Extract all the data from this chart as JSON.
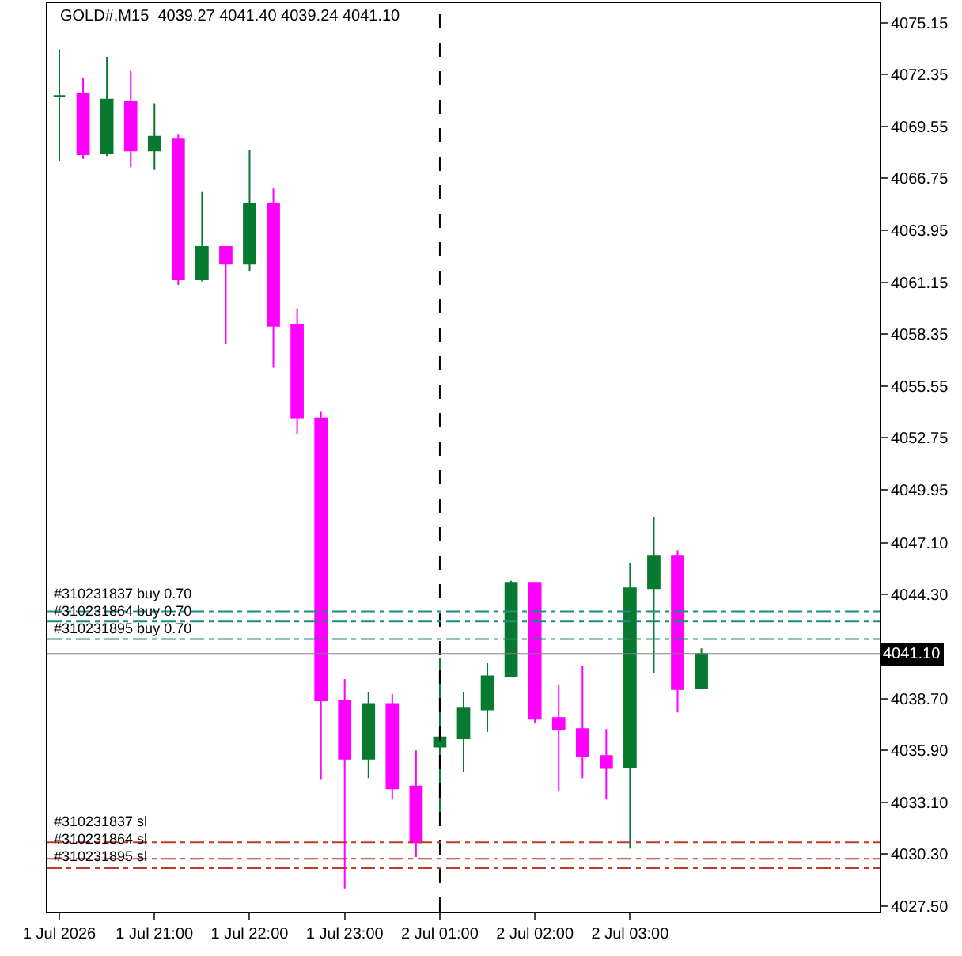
{
  "chart_data": {
    "type": "candlestick",
    "title": "GOLD#,M15  4039.27 4041.40 4039.24 4041.10",
    "categories": [
      "1 Jul 2026",
      null,
      null,
      null,
      "1 Jul 21:00",
      null,
      null,
      null,
      "1 Jul 22:00",
      null,
      null,
      null,
      "1 Jul 23:00",
      null,
      null,
      null,
      "2 Jul 01:00",
      null,
      null,
      null,
      "2 Jul 02:00",
      null,
      null,
      null,
      "2 Jul 03:00",
      null,
      null,
      null,
      null,
      null,
      null,
      null,
      null,
      null,
      null
    ],
    "ohlc": [
      [
        4071.2,
        4073.7,
        4067.7,
        4071.2
      ],
      [
        4071.3,
        4072.15,
        4067.8,
        4068.05
      ],
      [
        4068.1,
        4073.3,
        4067.95,
        4071.0
      ],
      [
        4070.9,
        4072.55,
        4067.35,
        4068.25
      ],
      [
        4068.25,
        4070.8,
        4067.2,
        4069.0
      ],
      [
        4068.85,
        4069.15,
        4061.0,
        4061.3
      ],
      [
        4061.3,
        4066.05,
        4061.2,
        4063.05
      ],
      [
        4063.05,
        4063.05,
        4057.8,
        4062.15
      ],
      [
        4062.15,
        4068.3,
        4061.75,
        4065.4
      ],
      [
        4065.4,
        4066.2,
        4056.55,
        4058.8
      ],
      [
        4058.85,
        4059.75,
        4052.95,
        4053.85
      ],
      [
        4053.8,
        4054.2,
        4034.35,
        4038.6
      ],
      [
        4038.6,
        4039.75,
        4028.45,
        4035.45
      ],
      [
        4035.45,
        4039.05,
        4034.4,
        4038.4
      ],
      [
        4038.4,
        4038.95,
        4033.25,
        4033.85
      ],
      [
        4033.95,
        4035.9,
        4030.15,
        4030.95
      ],
      [
        4036.1,
        4040.9,
        4032.45,
        4036.6
      ],
      [
        4036.55,
        4039.05,
        4034.75,
        4038.2
      ],
      [
        4038.1,
        4040.6,
        4036.9,
        4039.9
      ],
      [
        4039.9,
        4045.05,
        4039.9,
        4044.9
      ],
      [
        4044.9,
        4044.9,
        4037.4,
        4037.6
      ],
      [
        4037.65,
        4039.45,
        4033.7,
        4037.05
      ],
      [
        4037.05,
        4040.45,
        4034.4,
        4035.6
      ],
      [
        4035.6,
        4037.05,
        4033.25,
        4034.95
      ],
      [
        4035.0,
        4046.0,
        4030.6,
        4044.65
      ],
      [
        4044.65,
        4048.5,
        4040.05,
        4046.4
      ],
      [
        4046.4,
        4046.7,
        4037.95,
        4039.2
      ],
      [
        4039.27,
        4041.4,
        4039.24,
        4041.1
      ],
      null,
      null,
      null,
      null,
      null,
      null,
      null
    ],
    "colors": [
      "#087a2f",
      "#ff00ff",
      "#087a2f",
      "#ff00ff",
      "#087a2f",
      "#ff00ff",
      "#087a2f",
      "#ff00ff",
      "#087a2f",
      "#ff00ff",
      "#ff00ff",
      "#ff00ff",
      "#ff00ff",
      "#087a2f",
      "#ff00ff",
      "#ff00ff",
      "#087a2f",
      "#087a2f",
      "#087a2f",
      "#087a2f",
      "#ff00ff",
      "#ff00ff",
      "#ff00ff",
      "#ff00ff",
      "#087a2f",
      "#087a2f",
      "#ff00ff",
      "#087a2f",
      null,
      null,
      null,
      null,
      null,
      null,
      null
    ],
    "ylim": [
      4027.2,
      4076.2
    ],
    "yticks": [
      4075.15,
      4072.35,
      4069.55,
      4066.75,
      4063.95,
      4061.15,
      4058.35,
      4055.55,
      4052.75,
      4049.95,
      {
        "value": 4047.1,
        "label": "4047.10"
      },
      {
        "value": 4044.3,
        "label": "4044.30"
      },
      {
        "value": 4038.7,
        "label": "4038.70"
      },
      {
        "value": 4035.9,
        "label": "4035.90"
      },
      {
        "value": 4033.1,
        "label": "4033.10"
      },
      {
        "value": 4030.3,
        "label": "4030.30"
      },
      {
        "value": 4027.5,
        "label": "4027.50"
      }
    ],
    "ref_lines": [
      {
        "axis": "y",
        "value": 4043.4,
        "label": "#310231837 buy 0.70",
        "color": "#1e8c7e",
        "line_style": "dashdot"
      },
      {
        "axis": "y",
        "value": 4042.85,
        "label": "#310231864 buy 0.70",
        "color": "#1e8c7e",
        "line_style": "dashdot"
      },
      {
        "axis": "y",
        "value": 4041.9,
        "label": "#310231895 buy 0.70",
        "color": "#1e8c7e",
        "line_style": "dashdot"
      },
      {
        "axis": "y",
        "value": 4030.95,
        "label": "#310231837 sl",
        "color": "#c0392b",
        "line_style": "dashdot"
      },
      {
        "axis": "y",
        "value": 4030.05,
        "label": "#310231864 sl",
        "color": "#c0392b",
        "line_style": "dashdot"
      },
      {
        "axis": "y",
        "value": 4029.55,
        "label": "#310231895 sl",
        "color": "#c0392b",
        "line_style": "dashdot"
      },
      {
        "axis": "y",
        "value": 4041.1,
        "label": "4041.10",
        "color": "#808080",
        "line_style": "solid"
      },
      {
        "axis": "x",
        "value": "2 Jul 01:00",
        "color": "#000000",
        "line_style": "dashed"
      }
    ]
  }
}
